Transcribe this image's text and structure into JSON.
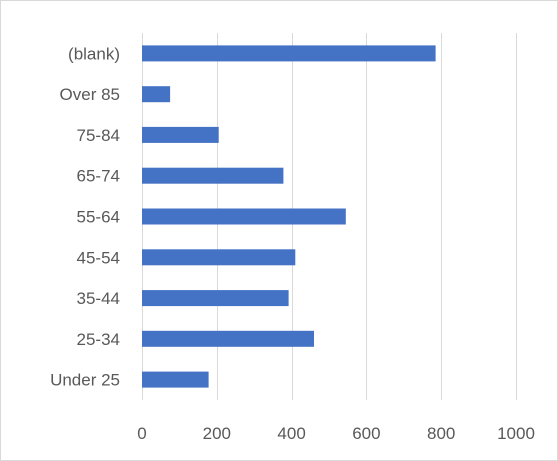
{
  "chart_data": {
    "type": "bar",
    "orientation": "horizontal",
    "categories": [
      "Under 25",
      "25-34",
      "35-44",
      "45-54",
      "55-64",
      "65-74",
      "75-84",
      "Over 85",
      "(blank)"
    ],
    "values": [
      178,
      460,
      392,
      410,
      545,
      378,
      205,
      75,
      785
    ],
    "xlim": [
      0,
      1000
    ],
    "x_ticks": [
      0,
      200,
      400,
      600,
      800,
      1000
    ],
    "x_tick_labels": [
      "0",
      "200",
      "400",
      "600",
      "800",
      "1000"
    ],
    "grid": true,
    "legend": "none",
    "bar_color": "#4472C4",
    "grid_color": "#d9d9d9",
    "label_color": "#595959"
  }
}
